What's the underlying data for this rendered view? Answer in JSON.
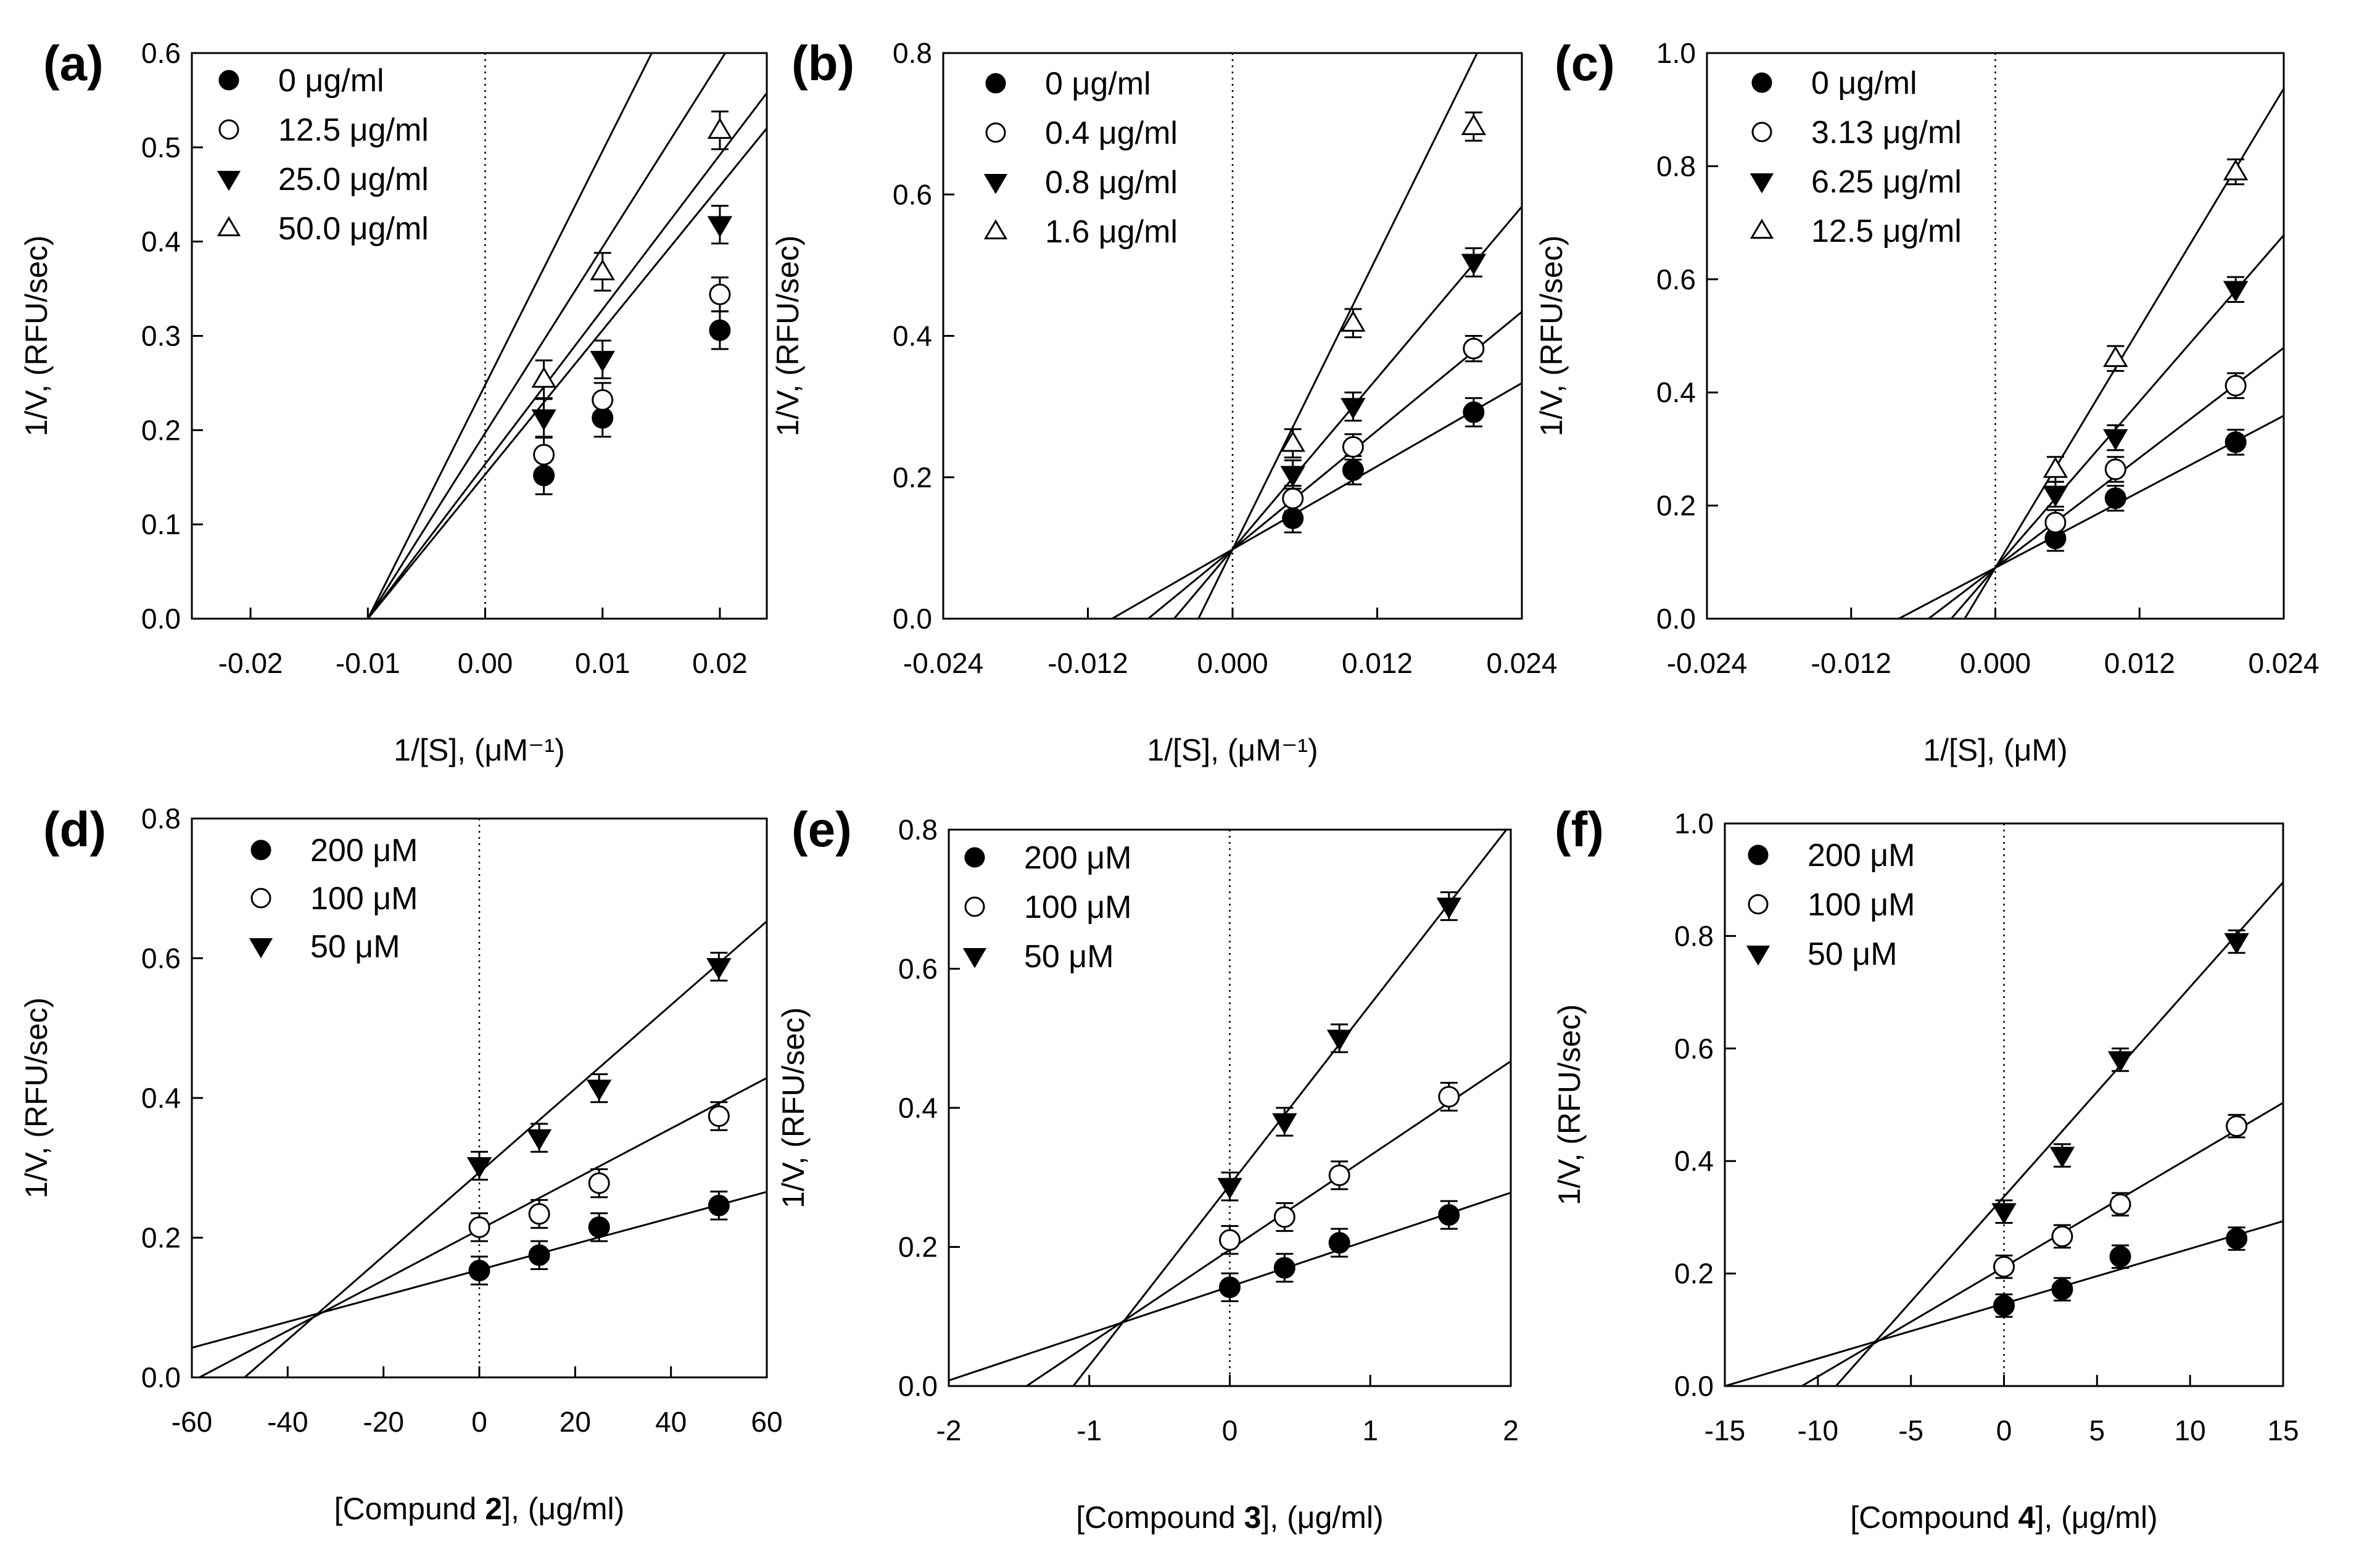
{
  "chart_data": [
    {
      "panel": "(a)",
      "type": "scatter",
      "xlim": [
        -0.025,
        0.024
      ],
      "ylim": [
        0,
        0.6
      ],
      "xticks": [
        -0.02,
        -0.01,
        0.0,
        0.01,
        0.02
      ],
      "xtick_labels": [
        "-0.02",
        "-0.01",
        "0.00",
        "0.01",
        "0.02"
      ],
      "yticks": [
        0,
        0.1,
        0.2,
        0.3,
        0.4,
        0.5,
        0.6
      ],
      "ytick_labels": [
        "0.0",
        "0.1",
        "0.2",
        "0.3",
        "0.4",
        "0.5",
        "0.6"
      ],
      "xlabel": "1/[S], (μM⁻¹)",
      "ylabel": "1/V, (RFU/sec)",
      "series": [
        {
          "name": "0 μg/ml",
          "marker": "filled-circle",
          "x": [
            0.005,
            0.01,
            0.02
          ],
          "y": [
            0.152,
            0.213,
            0.306
          ],
          "err": [
            0.02,
            0.02,
            0.02
          ],
          "line": {
            "slope": 15.3,
            "intercept": 0.153
          }
        },
        {
          "name": "12.5 μg/ml",
          "marker": "open-circle",
          "x": [
            0.005,
            0.01,
            0.02
          ],
          "y": [
            0.174,
            0.232,
            0.344
          ],
          "err": [
            0.018,
            0.018,
            0.018
          ],
          "line": {
            "slope": 16.4,
            "intercept": 0.164
          }
        },
        {
          "name": "25.0 μg/ml",
          "marker": "filled-triangle-down",
          "x": [
            0.005,
            0.01,
            0.02
          ],
          "y": [
            0.213,
            0.275,
            0.418
          ],
          "err": [
            0.02,
            0.02,
            0.02
          ],
          "line": {
            "slope": 19.7,
            "intercept": 0.197
          }
        },
        {
          "name": "50.0 μg/ml",
          "marker": "open-triangle-up",
          "x": [
            0.005,
            0.01,
            0.02
          ],
          "y": [
            0.254,
            0.368,
            0.518
          ],
          "err": [
            0.02,
            0.02,
            0.02
          ],
          "line": {
            "slope": 24.8,
            "intercept": 0.248
          }
        }
      ]
    },
    {
      "panel": "(b)",
      "type": "scatter",
      "xlim": [
        -0.024,
        0.024
      ],
      "ylim": [
        0,
        0.8
      ],
      "xticks": [
        -0.024,
        -0.012,
        0.0,
        0.012,
        0.024
      ],
      "xtick_labels": [
        "-0.024",
        "-0.012",
        "0.000",
        "0.012",
        "0.024"
      ],
      "yticks": [
        0,
        0.2,
        0.4,
        0.6,
        0.8
      ],
      "ytick_labels": [
        "0.0",
        "0.2",
        "0.4",
        "0.6",
        "0.8"
      ],
      "xlabel": "1/[S], (μM⁻¹)",
      "ylabel": "1/V, (RFU/sec)",
      "series": [
        {
          "name": "0 μg/ml",
          "marker": "filled-circle",
          "x": [
            0.005,
            0.01,
            0.02
          ],
          "y": [
            0.142,
            0.21,
            0.292
          ],
          "err": [
            0.02,
            0.02,
            0.02
          ],
          "line": {
            "slope": 9.8,
            "intercept": 0.098
          }
        },
        {
          "name": "0.4 μg/ml",
          "marker": "open-circle",
          "x": [
            0.005,
            0.01,
            0.02
          ],
          "y": [
            0.17,
            0.243,
            0.382
          ],
          "err": [
            0.018,
            0.018,
            0.018
          ],
          "line": {
            "slope": 14.0,
            "intercept": 0.098
          }
        },
        {
          "name": "0.8 μg/ml",
          "marker": "filled-triangle-down",
          "x": [
            0.005,
            0.01,
            0.02
          ],
          "y": [
            0.204,
            0.3,
            0.504
          ],
          "err": [
            0.02,
            0.02,
            0.02
          ],
          "line": {
            "slope": 20.2,
            "intercept": 0.098
          }
        },
        {
          "name": "1.6 μg/ml",
          "marker": "open-triangle-up",
          "x": [
            0.005,
            0.01,
            0.02
          ],
          "y": [
            0.248,
            0.418,
            0.696
          ],
          "err": [
            0.02,
            0.02,
            0.02
          ],
          "line": {
            "slope": 34.6,
            "intercept": 0.098
          }
        }
      ]
    },
    {
      "panel": "(c)",
      "type": "scatter",
      "xlim": [
        -0.024,
        0.024
      ],
      "ylim": [
        0,
        1.0
      ],
      "xticks": [
        -0.024,
        -0.012,
        0.0,
        0.012,
        0.024
      ],
      "xtick_labels": [
        "-0.024",
        "-0.012",
        "0.000",
        "0.012",
        "0.024"
      ],
      "yticks": [
        0,
        0.2,
        0.4,
        0.6,
        0.8,
        1.0
      ],
      "ytick_labels": [
        "0.0",
        "0.2",
        "0.4",
        "0.6",
        "0.8",
        "1.0"
      ],
      "xlabel": "1/[S], (μM)",
      "ylabel": "1/V, (RFU/sec)",
      "series": [
        {
          "name": "0 μg/ml",
          "marker": "filled-circle",
          "x": [
            0.005,
            0.01,
            0.02
          ],
          "y": [
            0.142,
            0.213,
            0.312
          ],
          "err": [
            0.022,
            0.022,
            0.022
          ],
          "line": {
            "slope": 11.2,
            "intercept": 0.09
          }
        },
        {
          "name": "3.13 μg/ml",
          "marker": "open-circle",
          "x": [
            0.005,
            0.01,
            0.02
          ],
          "y": [
            0.17,
            0.264,
            0.412
          ],
          "err": [
            0.022,
            0.022,
            0.022
          ],
          "line": {
            "slope": 16.2,
            "intercept": 0.09
          }
        },
        {
          "name": "6.25 μg/ml",
          "marker": "filled-triangle-down",
          "x": [
            0.005,
            0.01,
            0.02
          ],
          "y": [
            0.22,
            0.32,
            0.582
          ],
          "err": [
            0.022,
            0.022,
            0.022
          ],
          "line": {
            "slope": 24.5,
            "intercept": 0.09
          }
        },
        {
          "name": "12.5 μg/ml",
          "marker": "open-triangle-up",
          "x": [
            0.005,
            0.01,
            0.02
          ],
          "y": [
            0.264,
            0.46,
            0.79
          ],
          "err": [
            0.022,
            0.022,
            0.022
          ],
          "line": {
            "slope": 35.3,
            "intercept": 0.09
          }
        }
      ]
    },
    {
      "panel": "(d)",
      "type": "scatter",
      "xlim": [
        -60,
        60
      ],
      "ylim": [
        0,
        0.8
      ],
      "xticks": [
        -60,
        -40,
        -20,
        0,
        20,
        40,
        60
      ],
      "xtick_labels": [
        "-60",
        "-40",
        "-20",
        "0",
        "20",
        "40",
        "60"
      ],
      "yticks": [
        0,
        0.2,
        0.4,
        0.6,
        0.8
      ],
      "ytick_labels": [
        "0.0",
        "0.2",
        "0.4",
        "0.6",
        "0.8"
      ],
      "xlabel_parts": [
        "[Compund ",
        "2",
        "], (μg/ml)"
      ],
      "ylabel": "1/V, (RFU/sec)",
      "series": [
        {
          "name": "200 μM",
          "marker": "filled-circle",
          "x": [
            0,
            12.5,
            25,
            50
          ],
          "y": [
            0.153,
            0.175,
            0.215,
            0.246
          ],
          "err": [
            0.02,
            0.02,
            0.02,
            0.02
          ],
          "line": {
            "slope": 0.00186,
            "intercept": 0.154
          }
        },
        {
          "name": "100 μM",
          "marker": "open-circle",
          "x": [
            0,
            12.5,
            25,
            50
          ],
          "y": [
            0.215,
            0.234,
            0.278,
            0.374
          ],
          "err": [
            0.02,
            0.02,
            0.02,
            0.02
          ],
          "line": {
            "slope": 0.00362,
            "intercept": 0.2115
          }
        },
        {
          "name": "50 μM",
          "marker": "filled-triangle-down",
          "x": [
            0,
            12.5,
            25,
            50
          ],
          "y": [
            0.303,
            0.343,
            0.414,
            0.588
          ],
          "err": [
            0.02,
            0.02,
            0.02,
            0.02
          ],
          "line": {
            "slope": 0.00599,
            "intercept": 0.2935
          }
        }
      ]
    },
    {
      "panel": "(e)",
      "type": "scatter",
      "xlim": [
        -2,
        2
      ],
      "ylim": [
        0,
        0.8
      ],
      "xticks": [
        -2,
        -1,
        0,
        1,
        2
      ],
      "xtick_labels": [
        "-2",
        "-1",
        "0",
        "1",
        "2"
      ],
      "yticks": [
        0,
        0.2,
        0.4,
        0.6,
        0.8
      ],
      "ytick_labels": [
        "0.0",
        "0.2",
        "0.4",
        "0.6",
        "0.8"
      ],
      "xlabel_parts": [
        "[Compound ",
        "3",
        "], (μg/ml)"
      ],
      "ylabel": "1/V, (RFU/sec)",
      "series": [
        {
          "name": "200 μM",
          "marker": "filled-circle",
          "x": [
            0,
            0.39,
            0.78,
            1.56
          ],
          "y": [
            0.142,
            0.17,
            0.206,
            0.246
          ],
          "err": [
            0.02,
            0.02,
            0.02,
            0.02
          ],
          "line": {
            "slope": 0.0675,
            "intercept": 0.143
          }
        },
        {
          "name": "100 μM",
          "marker": "open-circle",
          "x": [
            0,
            0.39,
            0.78,
            1.56
          ],
          "y": [
            0.21,
            0.243,
            0.303,
            0.416
          ],
          "err": [
            0.02,
            0.02,
            0.02,
            0.02
          ],
          "line": {
            "slope": 0.1355,
            "intercept": 0.196
          }
        },
        {
          "name": "50 μM",
          "marker": "filled-triangle-down",
          "x": [
            0,
            0.39,
            0.78,
            1.56
          ],
          "y": [
            0.287,
            0.38,
            0.5,
            0.69
          ],
          "err": [
            0.02,
            0.02,
            0.02,
            0.02
          ],
          "line": {
            "slope": 0.2595,
            "intercept": 0.289
          }
        }
      ]
    },
    {
      "panel": "(f)",
      "type": "scatter",
      "xlim": [
        -15,
        15
      ],
      "ylim": [
        0,
        1.0
      ],
      "xticks": [
        -15,
        -10,
        -5,
        0,
        5,
        10,
        15
      ],
      "xtick_labels": [
        "-15",
        "-10",
        "-5",
        "0",
        "5",
        "10",
        "15"
      ],
      "yticks": [
        0,
        0.2,
        0.4,
        0.6,
        0.8,
        1.0
      ],
      "ytick_labels": [
        "0.0",
        "0.2",
        "0.4",
        "0.6",
        "0.8",
        "1.0"
      ],
      "xlabel_parts": [
        "[Compound ",
        "4",
        "], (μg/ml)"
      ],
      "ylabel": "1/V, (RFU/sec)",
      "series": [
        {
          "name": "200 μM",
          "marker": "filled-circle",
          "x": [
            0,
            3.13,
            6.25,
            12.5
          ],
          "y": [
            0.143,
            0.172,
            0.23,
            0.262
          ],
          "err": [
            0.02,
            0.02,
            0.02,
            0.02
          ],
          "line": {
            "slope": 0.00977,
            "intercept": 0.1465
          }
        },
        {
          "name": "100 μM",
          "marker": "open-circle",
          "x": [
            0,
            3.13,
            6.25,
            12.5
          ],
          "y": [
            0.212,
            0.266,
            0.323,
            0.462
          ],
          "err": [
            0.02,
            0.02,
            0.02,
            0.02
          ],
          "line": {
            "slope": 0.01947,
            "intercept": 0.2115
          }
        },
        {
          "name": "50 μM",
          "marker": "filled-triangle-down",
          "x": [
            0,
            3.13,
            6.25,
            12.5
          ],
          "y": [
            0.31,
            0.41,
            0.58,
            0.79
          ],
          "err": [
            0.02,
            0.02,
            0.02,
            0.02
          ],
          "line": {
            "slope": 0.03727,
            "intercept": 0.3365
          }
        }
      ]
    }
  ]
}
